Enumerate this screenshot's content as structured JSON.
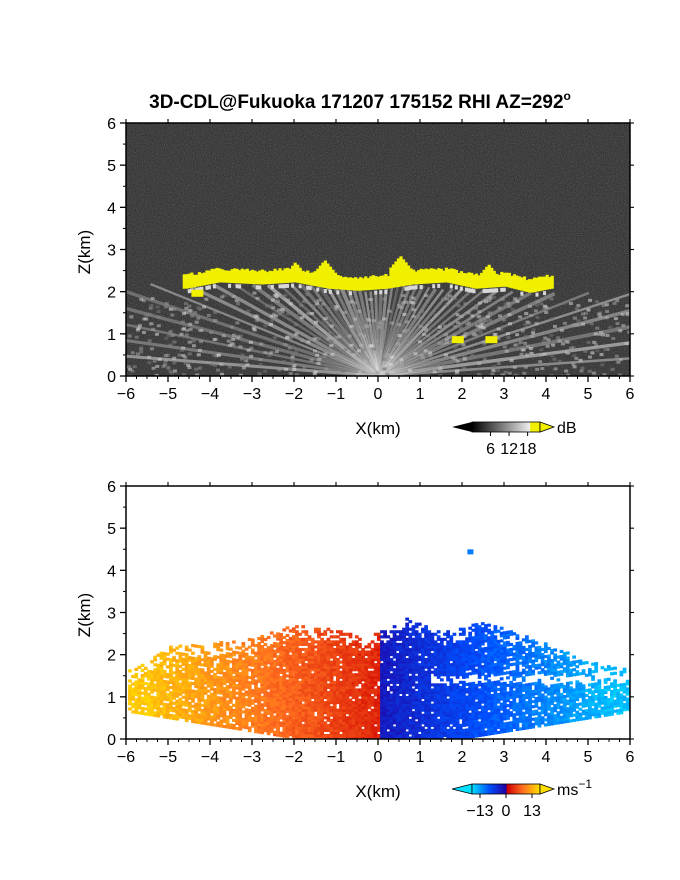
{
  "figure": {
    "title": "3D-CDL@Fukuoka 171207 175152 RHI AZ=292",
    "title_superscript": "o"
  },
  "chart_data": [
    {
      "type": "heatmap",
      "xlabel": "X(km)",
      "ylabel": "Z(km)",
      "xlim": [
        -6,
        6
      ],
      "ylim": [
        0,
        6
      ],
      "xticks": [
        "−6",
        "−5",
        "−4",
        "−3",
        "−2",
        "−1",
        "0",
        "1",
        "2",
        "3",
        "4",
        "5",
        "6"
      ],
      "yticks": [
        "0",
        "1",
        "2",
        "3",
        "4",
        "5",
        "6"
      ],
      "colorbar": {
        "unit": "dB",
        "unit_superscript": "",
        "ticks": [
          "6",
          "12",
          "18"
        ],
        "tick_values": [
          6,
          12,
          18
        ],
        "range": [
          0,
          22
        ]
      },
      "background": "#2a2a2a",
      "highlight_color": "#f0f000",
      "scan_origin": [
        0,
        0
      ],
      "cloud_base": [
        {
          "x": -4.6,
          "z": 2.15
        },
        {
          "x": -3.8,
          "z": 2.3
        },
        {
          "x": -2.8,
          "z": 2.25
        },
        {
          "x": -2.0,
          "z": 2.3
        },
        {
          "x": -1.2,
          "z": 2.15
        },
        {
          "x": -0.5,
          "z": 2.1
        },
        {
          "x": 0.2,
          "z": 2.15
        },
        {
          "x": 0.8,
          "z": 2.25
        },
        {
          "x": 1.6,
          "z": 2.3
        },
        {
          "x": 2.3,
          "z": 2.15
        },
        {
          "x": 3.0,
          "z": 2.2
        },
        {
          "x": 3.6,
          "z": 2.05
        },
        {
          "x": 4.1,
          "z": 2.15
        }
      ],
      "cloud_tops": [
        {
          "x": -2.0,
          "z": 2.7
        },
        {
          "x": -1.3,
          "z": 2.75
        },
        {
          "x": 0.5,
          "z": 2.85
        },
        {
          "x": 1.6,
          "z": 2.55
        },
        {
          "x": 2.6,
          "z": 2.65
        },
        {
          "x": 3.3,
          "z": 2.35
        }
      ],
      "echo_spots": [
        {
          "x": 1.9,
          "z": 0.85
        },
        {
          "x": 2.7,
          "z": 0.85
        },
        {
          "x": -4.3,
          "z": 1.95
        }
      ]
    },
    {
      "type": "heatmap",
      "xlabel": "X(km)",
      "ylabel": "Z(km)",
      "xlim": [
        -6,
        6
      ],
      "ylim": [
        0,
        6
      ],
      "xticks": [
        "−6",
        "−5",
        "−4",
        "−3",
        "−2",
        "−1",
        "0",
        "1",
        "2",
        "3",
        "4",
        "5",
        "6"
      ],
      "yticks": [
        "0",
        "1",
        "2",
        "3",
        "4",
        "5",
        "6"
      ],
      "colorbar": {
        "unit": "ms",
        "unit_superscript": "−1",
        "ticks": [
          "−13",
          "0",
          "13"
        ],
        "tick_values": [
          -13,
          0,
          13
        ],
        "range": [
          -17,
          17
        ]
      },
      "velocity_sign_change_x": 0.0,
      "left_velocity_range": [
        3,
        15
      ],
      "right_velocity_range": [
        -15,
        -3
      ],
      "echo_top": [
        {
          "x": -5.9,
          "z": 1.6
        },
        {
          "x": -5.0,
          "z": 2.2
        },
        {
          "x": -4.0,
          "z": 2.25
        },
        {
          "x": -3.0,
          "z": 2.35
        },
        {
          "x": -2.0,
          "z": 2.7
        },
        {
          "x": -1.0,
          "z": 2.55
        },
        {
          "x": -0.3,
          "z": 2.35
        },
        {
          "x": 0.6,
          "z": 2.85
        },
        {
          "x": 1.5,
          "z": 2.5
        },
        {
          "x": 2.5,
          "z": 2.75
        },
        {
          "x": 3.3,
          "z": 2.5
        },
        {
          "x": 4.2,
          "z": 2.15
        },
        {
          "x": 5.0,
          "z": 1.8
        },
        {
          "x": 6.0,
          "z": 1.6
        }
      ],
      "isolated_echo": {
        "x": 2.2,
        "z": 4.45
      }
    }
  ]
}
